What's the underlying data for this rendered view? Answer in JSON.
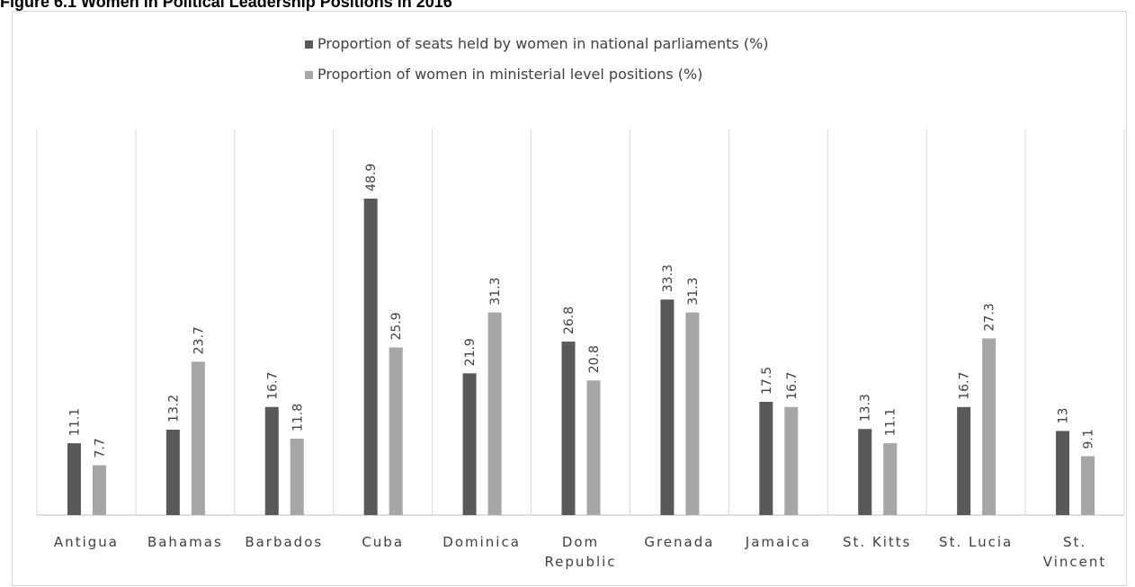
{
  "figure_title": "Figure 6.1 Women in Political Leadership Positions in 2016",
  "colors": {
    "series_dark": "#595959",
    "series_light": "#a6a6a6",
    "gridline": "#d9d9d9",
    "axis": "#bfbfbf",
    "text": "#404040"
  },
  "chart_data": {
    "type": "bar",
    "title": "Figure 6.1 Women in Political Leadership Positions in 2016",
    "legend_position": "top",
    "grid": "vertical category separators",
    "ylim": [
      0,
      60
    ],
    "categories": [
      [
        "Antigua"
      ],
      [
        "Bahamas"
      ],
      [
        "Barbados"
      ],
      [
        "Cuba"
      ],
      [
        "Dominica"
      ],
      [
        "Dom",
        "Republic"
      ],
      [
        "Grenada"
      ],
      [
        "Jamaica"
      ],
      [
        "St. Kitts"
      ],
      [
        "St. Lucia"
      ],
      [
        "St.",
        "Vincent"
      ]
    ],
    "series": [
      {
        "name": "Proportion of seats held by women in national parliaments (%)",
        "values": [
          11.1,
          13.2,
          16.7,
          48.9,
          21.9,
          26.8,
          33.3,
          17.5,
          13.3,
          16.7,
          13
        ],
        "labels": [
          "11.1",
          "13.2",
          "16.7",
          "48.9",
          "21.9",
          "26.8",
          "33.3",
          "17.5",
          "13.3",
          "16.7",
          "13"
        ]
      },
      {
        "name": "Proportion of women in ministerial level positions (%)",
        "values": [
          7.7,
          23.7,
          11.8,
          25.9,
          31.3,
          20.8,
          31.3,
          16.7,
          11.1,
          27.3,
          9.1
        ],
        "labels": [
          "7.7",
          "23.7",
          "11.8",
          "25.9",
          "31.3",
          "20.8",
          "31.3",
          "16.7",
          "11.1",
          "27.3",
          "9.1"
        ]
      }
    ]
  }
}
